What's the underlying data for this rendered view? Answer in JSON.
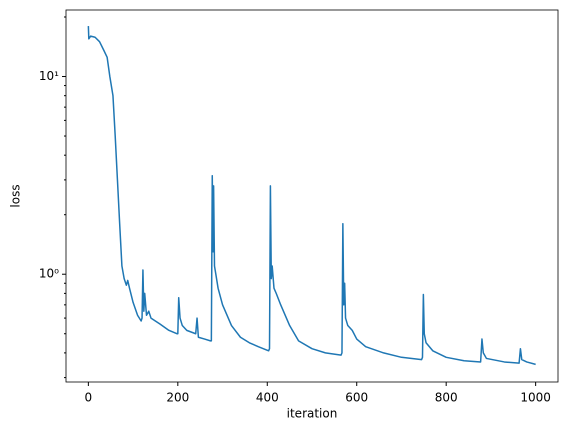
{
  "chart_data": {
    "type": "line",
    "xlabel": "iteration",
    "ylabel": "loss",
    "yscale": "log",
    "xlim": [
      -50,
      1050
    ],
    "ylim": [
      0.285,
      21.7
    ],
    "xticks": [
      0,
      200,
      400,
      600,
      800,
      1000
    ],
    "yticks": [
      {
        "value": 1,
        "label": "10⁰"
      },
      {
        "value": 10,
        "label": "10¹"
      }
    ],
    "yminorticks": [
      0.3,
      0.4,
      0.5,
      0.6,
      0.7,
      0.8,
      0.9,
      2,
      3,
      4,
      5,
      6,
      7,
      8,
      9,
      20
    ],
    "series": [
      {
        "color": "#1f77b4",
        "x": [
          0,
          1,
          5,
          15,
          25,
          35,
          42,
          48,
          55,
          60,
          65,
          70,
          75,
          80,
          85,
          88,
          92,
          100,
          110,
          118,
          120,
          122,
          124,
          126,
          130,
          135,
          140,
          160,
          180,
          198,
          200,
          202,
          205,
          210,
          220,
          240,
          243,
          246,
          260,
          273,
          275,
          277,
          279,
          280,
          282,
          285,
          290,
          300,
          320,
          340,
          360,
          380,
          403,
          405,
          407,
          409,
          411,
          415,
          420,
          430,
          450,
          470,
          500,
          530,
          565,
          567,
          569,
          571,
          573,
          575,
          580,
          590,
          600,
          620,
          660,
          700,
          745,
          747,
          749,
          751,
          755,
          770,
          800,
          840,
          877,
          880,
          883,
          890,
          930,
          963,
          966,
          969,
          980,
          1000
        ],
        "values": [
          18,
          15.5,
          16,
          15.8,
          15,
          13.5,
          12.5,
          10,
          8,
          5,
          3,
          1.8,
          1.1,
          0.95,
          0.88,
          0.93,
          0.85,
          0.72,
          0.62,
          0.58,
          0.6,
          1.05,
          0.65,
          0.8,
          0.62,
          0.65,
          0.6,
          0.56,
          0.52,
          0.5,
          0.5,
          0.76,
          0.6,
          0.55,
          0.52,
          0.5,
          0.6,
          0.48,
          0.47,
          0.46,
          0.46,
          3.15,
          1.3,
          2.8,
          1.1,
          1.0,
          0.85,
          0.7,
          0.55,
          0.48,
          0.45,
          0.43,
          0.41,
          0.42,
          2.8,
          0.95,
          1.1,
          0.85,
          0.8,
          0.7,
          0.55,
          0.46,
          0.42,
          0.4,
          0.39,
          0.4,
          1.8,
          0.7,
          0.9,
          0.6,
          0.55,
          0.52,
          0.47,
          0.43,
          0.4,
          0.38,
          0.37,
          0.38,
          0.79,
          0.5,
          0.45,
          0.41,
          0.38,
          0.365,
          0.36,
          0.47,
          0.4,
          0.375,
          0.36,
          0.355,
          0.42,
          0.37,
          0.36,
          0.35
        ]
      }
    ]
  }
}
